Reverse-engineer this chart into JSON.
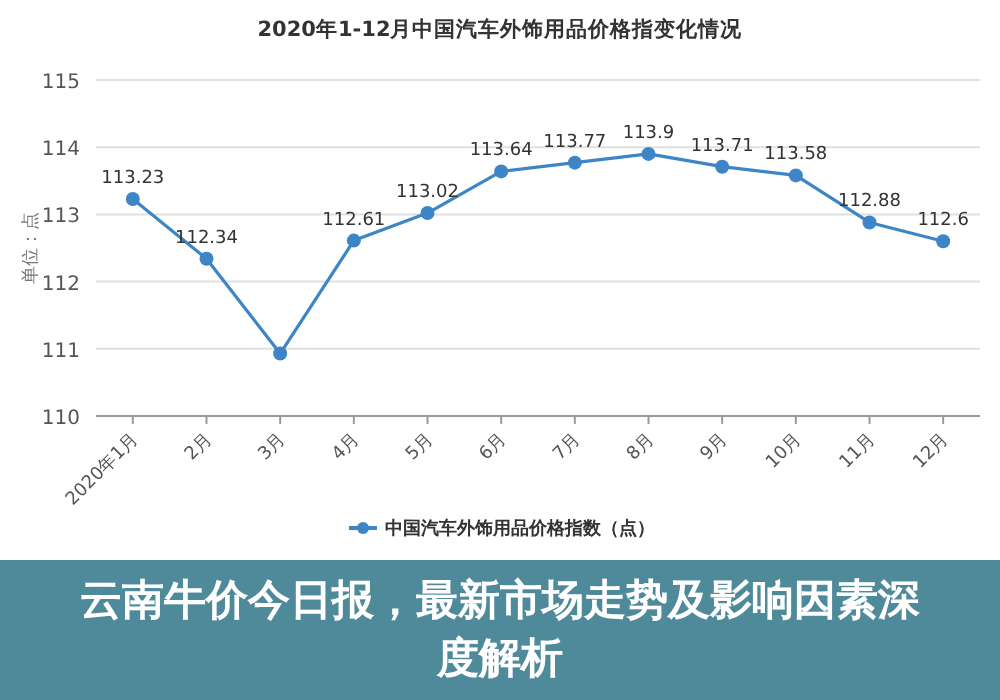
{
  "chart_data": {
    "type": "line",
    "title": "2020年1-12月中国汽车外饰用品价格指变化情况",
    "ylabel": "单位：点",
    "categories": [
      "2020年1月",
      "2月",
      "3月",
      "4月",
      "5月",
      "6月",
      "7月",
      "8月",
      "9月",
      "10月",
      "11月",
      "12月"
    ],
    "series": [
      {
        "name": "中国汽车外饰用品价格指数（点）",
        "color": "#3d85c6",
        "values": [
          113.23,
          112.34,
          110.93,
          112.61,
          113.02,
          113.64,
          113.77,
          113.9,
          113.71,
          113.58,
          112.88,
          112.6
        ],
        "value_labels": [
          "113.23",
          "112.34",
          null,
          "112.61",
          "113.02",
          "113.64",
          "113.77",
          "113.9",
          "113.71",
          "113.58",
          "112.88",
          "112.6"
        ]
      }
    ],
    "ylim": [
      110,
      115
    ],
    "yticks": [
      110,
      111,
      112,
      113,
      114,
      115
    ],
    "grid": "y",
    "legend": "bottom",
    "marker": "circle",
    "annotations": [
      "云南牛价今日报，最新市场走势及影响因素深度解析"
    ]
  }
}
